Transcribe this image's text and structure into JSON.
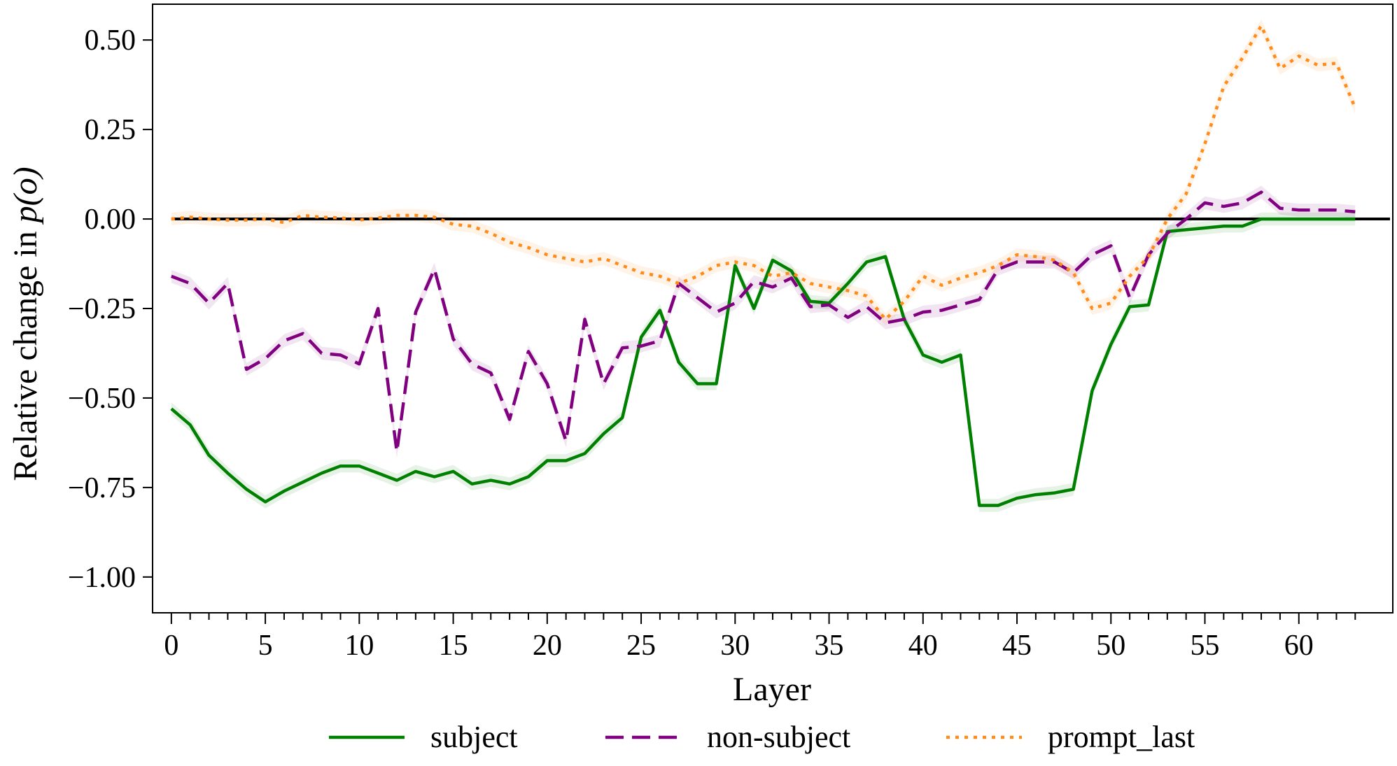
{
  "chart_data": {
    "type": "line",
    "xlabel": "Layer",
    "ylabel": "Relative change in ",
    "ylabel_math": "p(o)",
    "xlim": [
      -1,
      65
    ],
    "ylim": [
      -1.1,
      0.6
    ],
    "xticks_major": [
      0,
      5,
      10,
      15,
      20,
      25,
      30,
      35,
      40,
      45,
      50,
      55,
      60
    ],
    "xtick_labels": [
      "0",
      "5",
      "10",
      "15",
      "20",
      "25",
      "30",
      "35",
      "40",
      "45",
      "50",
      "55",
      "60"
    ],
    "yticks": [
      0.5,
      0.25,
      0.0,
      -0.25,
      -0.5,
      -0.75,
      -1.0
    ],
    "ytick_labels": [
      "0.50",
      "0.25",
      "0.00",
      "−0.25",
      "−0.50",
      "−0.75",
      "−1.00"
    ],
    "reference_line_y": 0,
    "legend_position": "bottom",
    "grid": false,
    "series": [
      {
        "name": "subject",
        "color": "#008000",
        "style": "solid",
        "values": [
          -0.53,
          -0.575,
          -0.66,
          -0.71,
          -0.755,
          -0.79,
          -0.76,
          -0.735,
          -0.71,
          -0.69,
          -0.69,
          -0.71,
          -0.73,
          -0.705,
          -0.72,
          -0.705,
          -0.74,
          -0.73,
          -0.74,
          -0.72,
          -0.675,
          -0.675,
          -0.655,
          -0.6,
          -0.555,
          -0.33,
          -0.255,
          -0.4,
          -0.46,
          -0.46,
          -0.13,
          -0.25,
          -0.115,
          -0.145,
          -0.23,
          -0.235,
          -0.18,
          -0.12,
          -0.105,
          -0.28,
          -0.38,
          -0.4,
          -0.38,
          -0.8,
          -0.8,
          -0.78,
          -0.77,
          -0.765,
          -0.755,
          -0.48,
          -0.35,
          -0.245,
          -0.24,
          -0.035,
          -0.03,
          -0.025,
          -0.02,
          -0.02,
          0.0,
          0.0,
          0.0,
          0.0,
          0.0,
          0.0
        ]
      },
      {
        "name": "non-subject",
        "color": "#800080",
        "style": "dashed",
        "values": [
          -0.16,
          -0.18,
          -0.235,
          -0.18,
          -0.42,
          -0.39,
          -0.34,
          -0.32,
          -0.375,
          -0.38,
          -0.405,
          -0.25,
          -0.65,
          -0.26,
          -0.14,
          -0.335,
          -0.405,
          -0.43,
          -0.56,
          -0.37,
          -0.46,
          -0.62,
          -0.28,
          -0.46,
          -0.36,
          -0.355,
          -0.34,
          -0.18,
          -0.22,
          -0.26,
          -0.235,
          -0.175,
          -0.19,
          -0.165,
          -0.245,
          -0.24,
          -0.275,
          -0.245,
          -0.29,
          -0.28,
          -0.26,
          -0.255,
          -0.24,
          -0.225,
          -0.14,
          -0.12,
          -0.12,
          -0.12,
          -0.15,
          -0.1,
          -0.075,
          -0.22,
          -0.1,
          -0.04,
          0.0,
          0.045,
          0.035,
          0.045,
          0.075,
          0.03,
          0.025,
          0.025,
          0.025,
          0.02
        ]
      },
      {
        "name": "prompt_last",
        "color": "#ff8c1a",
        "style": "dotted",
        "values": [
          0.0,
          0.005,
          0.0,
          -0.003,
          -0.003,
          0.0,
          -0.01,
          0.01,
          0.005,
          0.003,
          -0.003,
          0.003,
          0.01,
          0.01,
          0.005,
          -0.015,
          -0.02,
          -0.04,
          -0.065,
          -0.08,
          -0.1,
          -0.11,
          -0.12,
          -0.11,
          -0.13,
          -0.15,
          -0.16,
          -0.18,
          -0.16,
          -0.13,
          -0.12,
          -0.13,
          -0.16,
          -0.15,
          -0.18,
          -0.19,
          -0.2,
          -0.215,
          -0.28,
          -0.23,
          -0.16,
          -0.185,
          -0.165,
          -0.15,
          -0.13,
          -0.1,
          -0.105,
          -0.115,
          -0.15,
          -0.25,
          -0.235,
          -0.16,
          -0.105,
          0.0,
          0.07,
          0.21,
          0.37,
          0.45,
          0.54,
          0.42,
          0.455,
          0.43,
          0.435,
          0.31
        ]
      }
    ]
  }
}
